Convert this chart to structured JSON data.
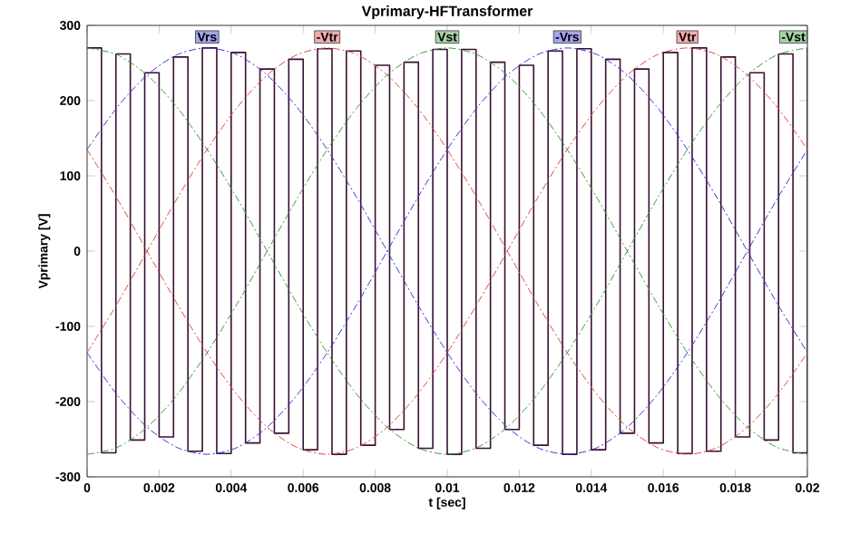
{
  "chart_data": {
    "type": "line",
    "title": "Vprimary-HFTransformer",
    "xlabel": "t [sec]",
    "ylabel": "Vprimary [V]",
    "xlim": [
      0,
      0.02
    ],
    "ylim": [
      -300,
      300
    ],
    "xticks": [
      0,
      0.002,
      0.004,
      0.006,
      0.008,
      0.01,
      0.012,
      0.014,
      0.016,
      0.018,
      0.02
    ],
    "yticks": [
      -300,
      -200,
      -100,
      0,
      100,
      200,
      300
    ],
    "x": [
      0,
      0.000833,
      0.001667,
      0.0025,
      0.003333,
      0.004167,
      0.005,
      0.005833,
      0.006667,
      0.0075,
      0.008333,
      0.009167,
      0.01,
      0.010833,
      0.011667,
      0.0125,
      0.013333,
      0.014167,
      0.015,
      0.015833,
      0.016667,
      0.0175,
      0.018333,
      0.019167,
      0.02
    ],
    "series": [
      {
        "type": "step",
        "color": "#3a0f33",
        "line_style": "solid",
        "x": [
          0,
          0.0004,
          0.0008,
          0.0012,
          0.0016,
          0.002,
          0.0024,
          0.0028,
          0.0032,
          0.0036,
          0.004,
          0.0044,
          0.0048,
          0.0052,
          0.0056,
          0.006,
          0.0064,
          0.0068,
          0.0072,
          0.0076,
          0.008,
          0.0084,
          0.0088,
          0.0092,
          0.0096,
          0.01,
          0.0104,
          0.0108,
          0.0112,
          0.0116,
          0.012,
          0.0124,
          0.0128,
          0.0132,
          0.0136,
          0.014,
          0.0144,
          0.0148,
          0.0152,
          0.0156,
          0.016,
          0.0164,
          0.0168,
          0.0172,
          0.0176,
          0.018,
          0.0184,
          0.0188,
          0.0192,
          0.0196,
          0.02
        ],
        "values": [
          270,
          -268,
          262,
          -251,
          237,
          -247,
          258,
          -266,
          270,
          -269,
          264,
          -255,
          242,
          -242,
          255,
          -264,
          269,
          -270,
          266,
          -258,
          247,
          -237,
          251,
          -262,
          268,
          -270,
          268,
          -262,
          251,
          -237,
          247,
          -258,
          266,
          -270,
          269,
          -264,
          255,
          -242,
          242,
          -255,
          264,
          -269,
          270,
          -266,
          258,
          -247,
          237,
          -251,
          262,
          -268,
          270
        ]
      },
      {
        "name": "Vrs",
        "color": "#3838d0",
        "line_style": "dashed",
        "values": [
          135,
          191,
          234,
          261,
          270,
          261,
          234,
          191,
          135,
          70,
          0,
          -70,
          -135,
          -191,
          -234,
          -261,
          -270,
          -261,
          -234,
          -191,
          -135,
          -70,
          0,
          70,
          135
        ]
      },
      {
        "name": "-Vtr",
        "color": "#e04848",
        "line_style": "dashed",
        "values": [
          -135,
          -70,
          0,
          70,
          135,
          191,
          234,
          261,
          270,
          261,
          234,
          191,
          135,
          70,
          0,
          -70,
          -135,
          -191,
          -234,
          -261,
          -270,
          -261,
          -234,
          -191,
          -135
        ]
      },
      {
        "name": "Vst",
        "color": "#3c9a3c",
        "line_style": "dashed",
        "values": [
          -270,
          -261,
          -234,
          -191,
          -135,
          -70,
          0,
          70,
          135,
          191,
          234,
          261,
          270,
          261,
          234,
          191,
          135,
          70,
          0,
          -70,
          -135,
          -191,
          -234,
          -261,
          -270
        ]
      },
      {
        "name": "-Vrs",
        "color": "#3838d0",
        "line_style": "dashed",
        "values": [
          -135,
          -191,
          -234,
          -261,
          -270,
          -261,
          -234,
          -191,
          -135,
          -70,
          0,
          70,
          135,
          191,
          234,
          261,
          270,
          261,
          234,
          191,
          135,
          70,
          0,
          -70,
          -135
        ]
      },
      {
        "name": "Vtr",
        "color": "#e04848",
        "line_style": "dashed",
        "values": [
          135,
          70,
          0,
          -70,
          -135,
          -191,
          -234,
          -261,
          -270,
          -261,
          -234,
          -191,
          -135,
          -70,
          0,
          70,
          135,
          191,
          234,
          261,
          270,
          261,
          234,
          191,
          135
        ]
      },
      {
        "name": "-Vst",
        "color": "#3c9a3c",
        "line_style": "dashed",
        "values": [
          270,
          261,
          234,
          191,
          135,
          70,
          0,
          -70,
          -135,
          -191,
          -234,
          -261,
          -270,
          -261,
          -234,
          -191,
          -135,
          -70,
          0,
          70,
          135,
          191,
          234,
          261,
          270
        ]
      }
    ]
  }
}
